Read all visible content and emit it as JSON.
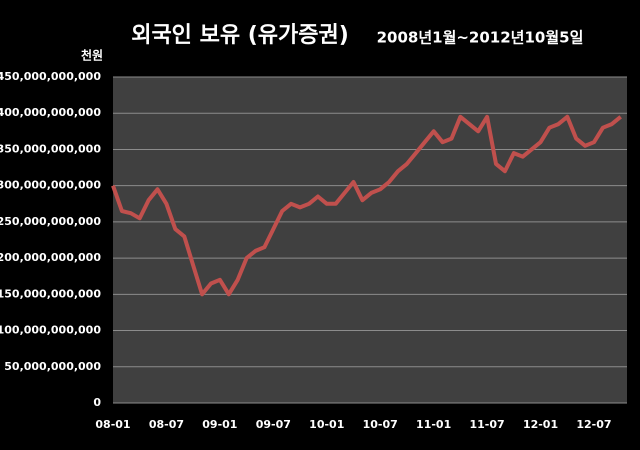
{
  "chart_data": {
    "type": "line",
    "title": "외국인 보유 (유가증권)",
    "subtitle": "2008년1월~2012년10월5일",
    "ylabel": "천원",
    "categories": [
      "08-01",
      null,
      null,
      null,
      null,
      null,
      "08-07",
      null,
      null,
      null,
      null,
      null,
      "09-01",
      null,
      null,
      null,
      null,
      null,
      "09-07",
      null,
      null,
      null,
      null,
      null,
      "10-01",
      null,
      null,
      null,
      null,
      null,
      "10-07",
      null,
      null,
      null,
      null,
      null,
      "11-01",
      null,
      null,
      null,
      null,
      null,
      "11-07",
      null,
      null,
      null,
      null,
      null,
      "12-01",
      null,
      null,
      null,
      null,
      null,
      "12-07",
      null,
      null,
      null
    ],
    "values": [
      300000000000,
      265000000000,
      262000000000,
      255000000000,
      280000000000,
      295000000000,
      275000000000,
      240000000000,
      230000000000,
      190000000000,
      150000000000,
      165000000000,
      170000000000,
      150000000000,
      170000000000,
      200000000000,
      210000000000,
      215000000000,
      240000000000,
      265000000000,
      275000000000,
      270000000000,
      275000000000,
      285000000000,
      275000000000,
      275000000000,
      290000000000,
      305000000000,
      280000000000,
      290000000000,
      295000000000,
      305000000000,
      320000000000,
      330000000000,
      345000000000,
      360000000000,
      375000000000,
      360000000000,
      365000000000,
      395000000000,
      385000000000,
      375000000000,
      395000000000,
      330000000000,
      320000000000,
      345000000000,
      340000000000,
      350000000000,
      360000000000,
      380000000000,
      385000000000,
      395000000000,
      365000000000,
      355000000000,
      360000000000,
      380000000000,
      385000000000,
      395000000000
    ],
    "color": "#c0504d",
    "ylim": [
      0,
      450000000000
    ],
    "yticks": [
      0,
      {
        "value": 50000000000,
        "label": "50,000,000,000"
      },
      {
        "value": 100000000000,
        "label": "100,000,000,000"
      },
      {
        "value": 150000000000,
        "label": "150,000,000,000"
      },
      {
        "value": 200000000000,
        "label": "200,000,000,000"
      },
      {
        "value": 250000000000,
        "label": "250,000,000,000"
      },
      {
        "value": 300000000000,
        "label": "300,000,000,000"
      },
      {
        "value": 350000000000,
        "label": "350,000,000,000"
      },
      {
        "value": 400000000000,
        "label": "400,000,000,000"
      },
      {
        "value": 450000000000,
        "label": "450,000,000,000"
      }
    ],
    "grid": true
  }
}
